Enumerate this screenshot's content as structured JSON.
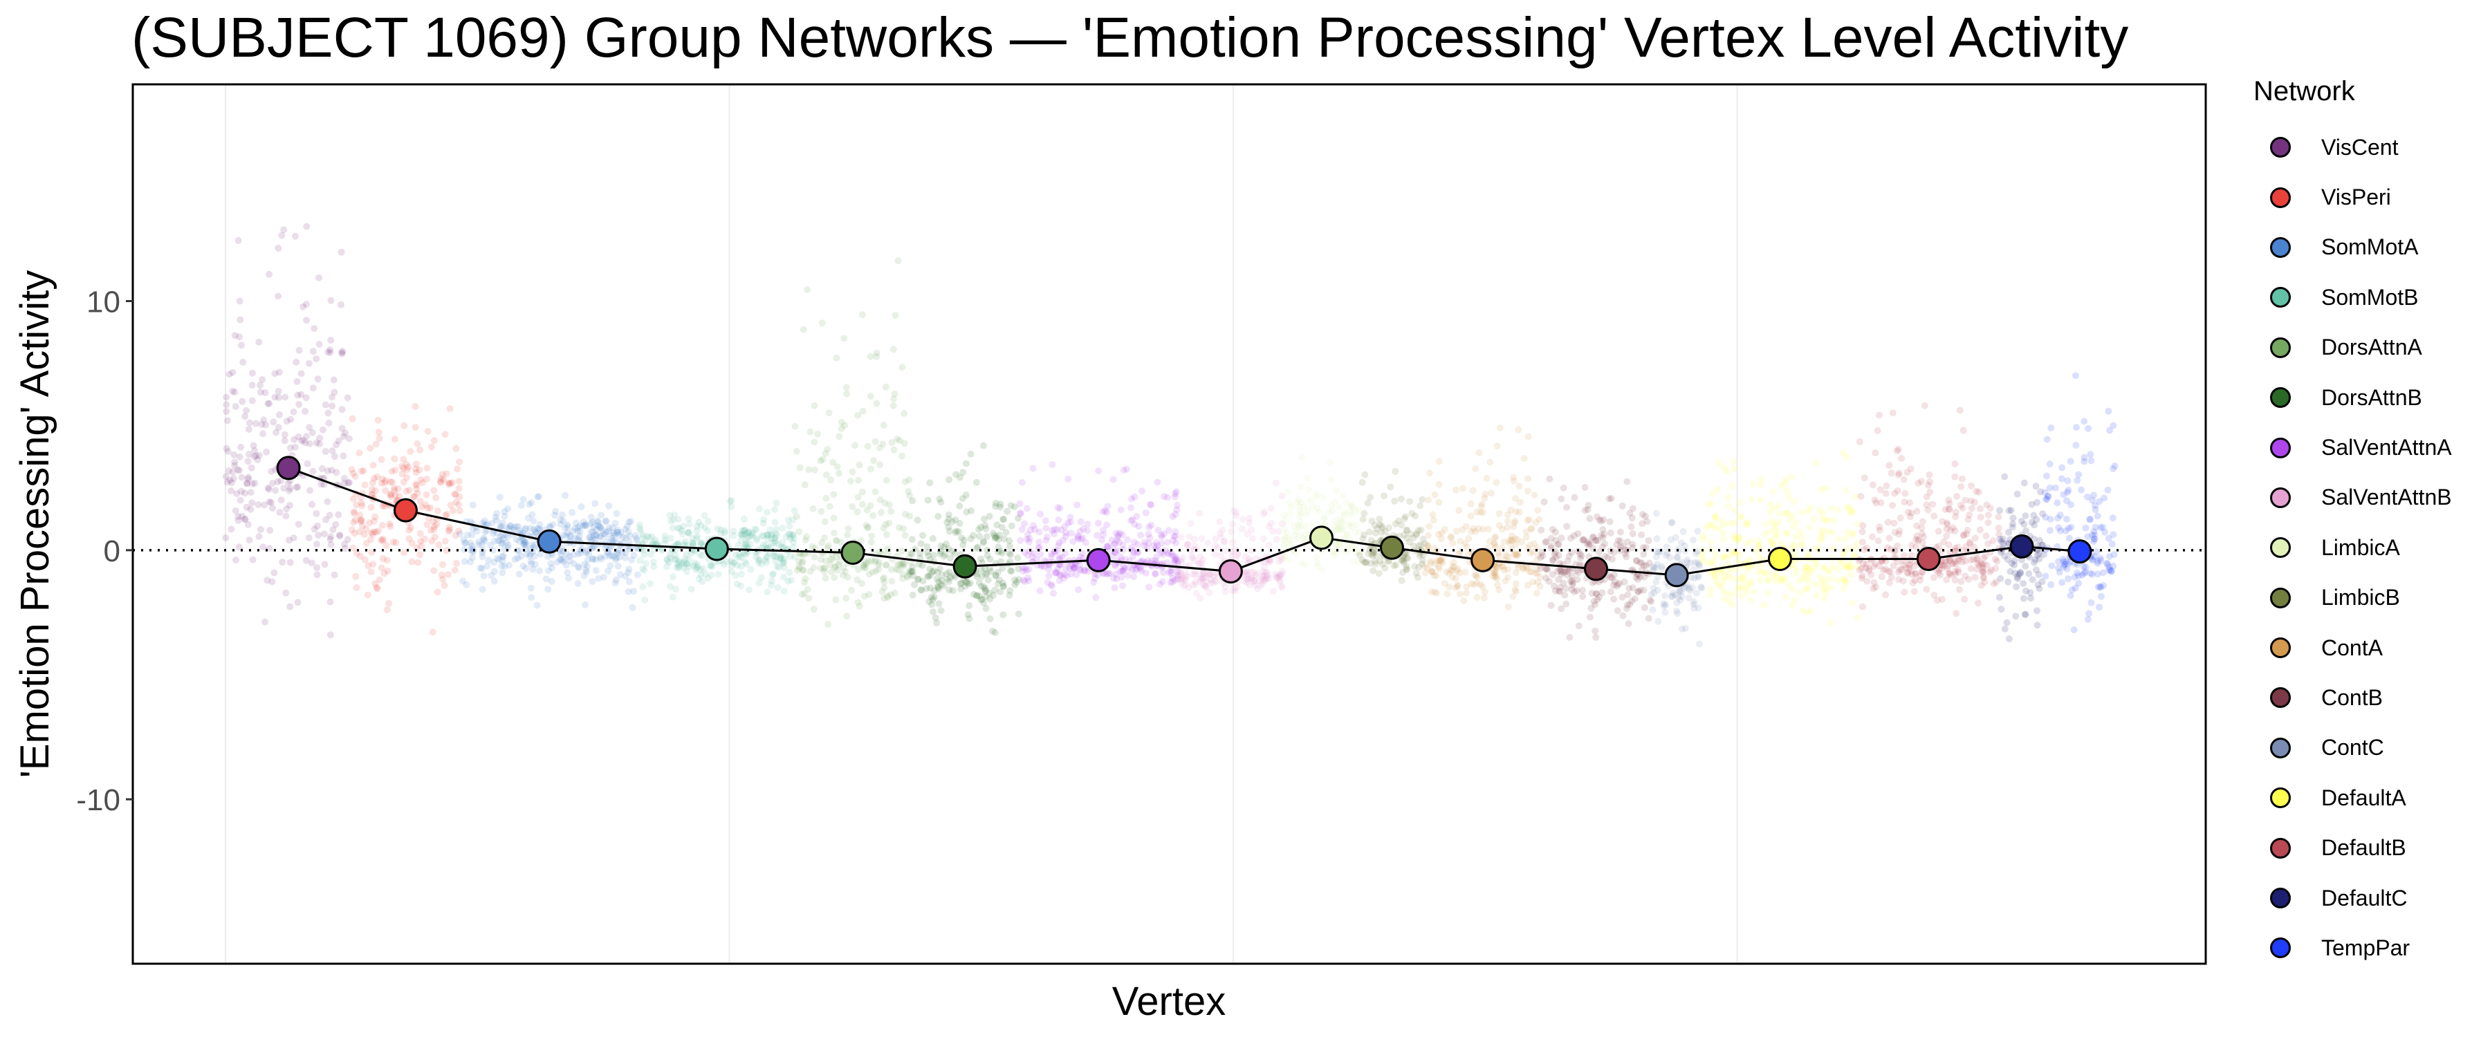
{
  "chart_data": {
    "type": "scatter",
    "title": "(SUBJECT 1069) Group Networks — 'Emotion Processing' Vertex Level Activity",
    "xlabel": "Vertex",
    "ylabel": "'Emotion Processing' Activity",
    "xlim": [
      -18.4,
      393
    ],
    "ylim": [
      -16.6,
      18.7
    ],
    "yticks": [
      -10,
      0,
      10
    ],
    "ytick_labels": [
      "-10",
      "0",
      "10"
    ],
    "xgrid": [
      0,
      100,
      200,
      300
    ],
    "reference_line": 0,
    "legend_title": "Network",
    "legend_position": "right",
    "networks": [
      {
        "name": "VisCent",
        "color": "#74337F",
        "x_range": [
          0,
          25
        ],
        "mean": 3.3,
        "range": [
          -3.8,
          13.8
        ]
      },
      {
        "name": "VisPeri",
        "color": "#E8423A",
        "x_range": [
          25,
          46.5
        ],
        "mean": 1.6,
        "range": [
          -3.7,
          5.8
        ]
      },
      {
        "name": "SomMotA",
        "color": "#4A83D0",
        "x_range": [
          46.5,
          82
        ],
        "mean": 0.35,
        "range": [
          -2.4,
          2.2
        ]
      },
      {
        "name": "SomMotB",
        "color": "#63C2A5",
        "x_range": [
          82,
          113
        ],
        "mean": 0.05,
        "range": [
          -2.0,
          2.0
        ]
      },
      {
        "name": "DorsAttnA",
        "color": "#76A862",
        "x_range": [
          113,
          136
        ],
        "mean": -0.1,
        "range": [
          -3.2,
          11.8
        ]
      },
      {
        "name": "DorsAttnB",
        "color": "#2B6A26",
        "x_range": [
          136,
          157.5
        ],
        "mean": -0.65,
        "range": [
          -3.5,
          4.2
        ]
      },
      {
        "name": "SalVentAttnA",
        "color": "#AE47EE",
        "x_range": [
          157.5,
          189
        ],
        "mean": -0.4,
        "range": [
          -1.9,
          3.5
        ]
      },
      {
        "name": "SalVentAttnB",
        "color": "#E6A2D2",
        "x_range": [
          189,
          210
        ],
        "mean": -0.85,
        "range": [
          -2.2,
          2.9
        ]
      },
      {
        "name": "LimbicA",
        "color": "#E2F2B8",
        "x_range": [
          210,
          225
        ],
        "mean": 0.5,
        "range": [
          -1.0,
          3.8
        ]
      },
      {
        "name": "LimbicB",
        "color": "#737F3F",
        "x_range": [
          225,
          238
        ],
        "mean": 0.1,
        "range": [
          -1.6,
          3.3
        ]
      },
      {
        "name": "ContA",
        "color": "#D49A50",
        "x_range": [
          238,
          261
        ],
        "mean": -0.4,
        "range": [
          -2.6,
          5.3
        ]
      },
      {
        "name": "ContB",
        "color": "#7B3A45",
        "x_range": [
          261,
          283
        ],
        "mean": -0.75,
        "range": [
          -3.5,
          3.0
        ]
      },
      {
        "name": "ContC",
        "color": "#7A8CB2",
        "x_range": [
          283,
          293
        ],
        "mean": -1.0,
        "range": [
          -4.0,
          1.7
        ]
      },
      {
        "name": "DefaultA",
        "color": "#FFFF50",
        "x_range": [
          293,
          324
        ],
        "mean": -0.35,
        "range": [
          -3.0,
          4.0
        ]
      },
      {
        "name": "DefaultB",
        "color": "#B94A55",
        "x_range": [
          324,
          352
        ],
        "mean": -0.35,
        "range": [
          -2.6,
          5.8
        ]
      },
      {
        "name": "DefaultC",
        "color": "#1D2070",
        "x_range": [
          352,
          361
        ],
        "mean": 0.15,
        "range": [
          -3.9,
          3.5
        ]
      },
      {
        "name": "TempPar",
        "color": "#1F3DFA",
        "x_range": [
          361,
          375
        ],
        "mean": -0.05,
        "range": [
          -3.2,
          7.6
        ]
      }
    ]
  }
}
